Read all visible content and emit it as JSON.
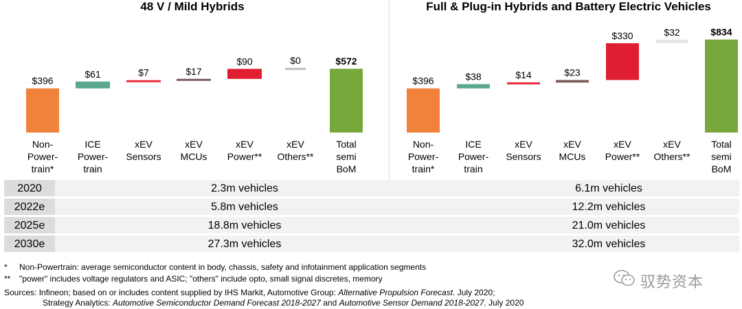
{
  "chart_data": [
    {
      "type": "waterfall",
      "title": "48 V / Mild Hybrids",
      "categories": [
        "Non-\nPower-\ntrain*",
        "ICE\nPower-\ntrain",
        "xEV\nSensors",
        "xEV\nMCUs",
        "xEV\nPower**",
        "xEV\nOthers**",
        "Total\nsemi\nBoM"
      ],
      "labels": [
        "$396",
        "$61",
        "$7",
        "$17",
        "$90",
        "$0",
        "$572"
      ],
      "values": [
        396,
        61,
        7,
        17,
        90,
        0,
        572
      ],
      "colors": [
        "#f0823c",
        "#5aa88e",
        "#e8283c",
        "#7b5a5a",
        "#e01e32",
        "#bdbdbd",
        "#78a83c"
      ],
      "ylim": [
        0,
        850
      ]
    },
    {
      "type": "waterfall",
      "title": "Full & Plug-in Hybrids and Battery Electric Vehicles",
      "categories": [
        "Non-\nPower-\ntrain*",
        "ICE\nPower-\ntrain",
        "xEV\nSensors",
        "xEV\nMCUs",
        "xEV\nPower**",
        "xEV\nOthers**",
        "Total\nsemi\nBoM"
      ],
      "labels": [
        "$396",
        "$38",
        "$14",
        "$23",
        "$330",
        "$32",
        "$834"
      ],
      "values": [
        396,
        38,
        14,
        23,
        330,
        32,
        834
      ],
      "colors": [
        "#f0823c",
        "#5aa88e",
        "#e8283c",
        "#7b5a5a",
        "#e01e32",
        "#e6e6e6",
        "#78a83c"
      ],
      "ylim": [
        0,
        850
      ]
    }
  ],
  "vehicles_table": [
    {
      "year": "2020",
      "mild": "2.3m vehicles",
      "full": "6.1m vehicles"
    },
    {
      "year": "2022e",
      "mild": "5.8m vehicles",
      "full": "12.2m vehicles"
    },
    {
      "year": "2025e",
      "mild": "18.8m vehicles",
      "full": "21.0m vehicles"
    },
    {
      "year": "2030e",
      "mild": "27.3m vehicles",
      "full": "32.0m vehicles"
    }
  ],
  "footnotes": {
    "f1_mark": "*",
    "f1_text": "Non-Powertrain: average semiconductor content in body, chassis, safety and infotainment application segments",
    "f2_mark": "**",
    "f2_text": "\"power\" includes voltage regulators and ASIC; \"others\" include opto, small signal discretes, memory",
    "src_a": "Sources: Infineon; based on or includes content supplied by IHS Markit, Automotive Group: ",
    "src_b": "Alternative Propulsion Forecast",
    "src_c": ". July 2020;",
    "src_d": "Strategy Analytics: ",
    "src_e": "Automotive Semiconductor Demand Forecast 2018-2027",
    "src_f": " and ",
    "src_g": "Automotive Sensor Demand 2018-2027",
    "src_h": ". July 2020"
  },
  "watermark": {
    "text": "驭势资本",
    "icon": "wechat-icon"
  }
}
